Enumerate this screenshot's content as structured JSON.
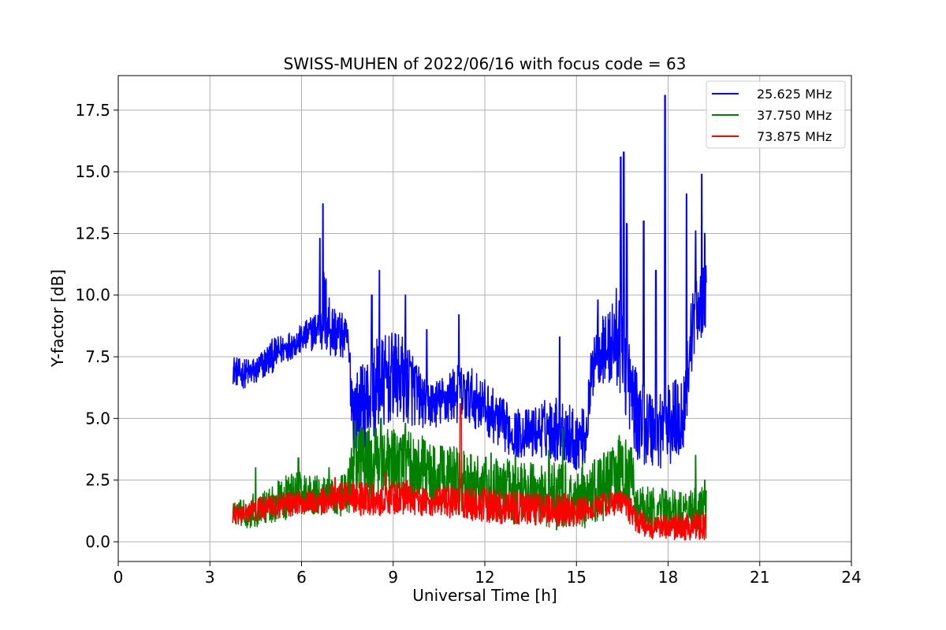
{
  "chart_data": {
    "type": "line",
    "title": "SWISS-MUHEN of 2022/06/16 with focus code = 63",
    "xlabel": "Universal Time [h]",
    "ylabel": "Y-factor [dB]",
    "xlim": [
      0,
      24
    ],
    "ylim": [
      -0.8,
      18.9
    ],
    "x_ticks": [
      0,
      3,
      6,
      9,
      12,
      15,
      18,
      21,
      24
    ],
    "x_tick_labels": [
      "0",
      "3",
      "6",
      "9",
      "12",
      "15",
      "18",
      "21",
      "24"
    ],
    "y_ticks": [
      0.0,
      2.5,
      5.0,
      7.5,
      10.0,
      12.5,
      15.0,
      17.5
    ],
    "y_tick_labels": [
      "0.0",
      "2.5",
      "5.0",
      "7.5",
      "10.0",
      "12.5",
      "15.0",
      "17.5"
    ],
    "grid": true,
    "legend_position": "top-right",
    "series": [
      {
        "name": "25.625 MHz",
        "color": "#0000ff",
        "x": [
          3.75,
          4.0,
          4.5,
          5.0,
          5.5,
          6.0,
          6.5,
          6.7,
          7.0,
          7.5,
          7.7,
          8.0,
          8.5,
          9.0,
          9.5,
          10.0,
          10.5,
          11.0,
          11.5,
          12.0,
          12.5,
          13.0,
          13.5,
          14.0,
          14.5,
          15.0,
          15.3,
          15.6,
          16.0,
          16.4,
          16.6,
          17.0,
          17.5,
          18.0,
          18.5,
          18.8,
          19.0,
          19.25
        ],
        "y": [
          7.0,
          6.8,
          6.9,
          7.5,
          7.9,
          8.2,
          8.6,
          9.5,
          8.6,
          8.2,
          5.2,
          5.5,
          6.3,
          6.7,
          6.5,
          5.6,
          5.6,
          6.0,
          5.9,
          5.5,
          4.8,
          4.4,
          4.4,
          4.6,
          4.6,
          4.1,
          4.3,
          7.8,
          7.8,
          8.4,
          7.0,
          5.0,
          4.6,
          4.7,
          5.2,
          8.8,
          9.6,
          9.8
        ],
        "amp": [
          0.6,
          0.6,
          0.6,
          0.7,
          0.6,
          0.6,
          0.8,
          2.0,
          1.2,
          0.8,
          1.6,
          1.8,
          2.0,
          1.8,
          1.8,
          1.0,
          1.0,
          1.2,
          1.2,
          1.1,
          1.1,
          1.0,
          1.0,
          1.2,
          1.4,
          1.2,
          1.2,
          1.4,
          1.4,
          2.4,
          2.0,
          1.7,
          1.7,
          1.7,
          1.7,
          1.6,
          1.4,
          1.4
        ],
        "spikes": [
          [
            6.7,
            13.7
          ],
          [
            6.6,
            12.3
          ],
          [
            8.55,
            11.0
          ],
          [
            8.3,
            10.0
          ],
          [
            9.4,
            10.0
          ],
          [
            10.1,
            8.6
          ],
          [
            11.15,
            9.2
          ],
          [
            14.45,
            8.3
          ],
          [
            15.7,
            9.8
          ],
          [
            16.45,
            15.6
          ],
          [
            16.55,
            15.8
          ],
          [
            16.65,
            12.9
          ],
          [
            17.2,
            13.0
          ],
          [
            17.6,
            11.0
          ],
          [
            17.9,
            18.1
          ],
          [
            18.6,
            14.1
          ],
          [
            18.9,
            12.6
          ],
          [
            19.1,
            14.9
          ],
          [
            19.2,
            12.5
          ]
        ]
      },
      {
        "name": "37.750 MHz",
        "color": "#008000",
        "x": [
          3.75,
          4.0,
          4.5,
          5.0,
          5.5,
          6.0,
          6.5,
          7.0,
          7.5,
          7.7,
          8.0,
          8.5,
          9.0,
          9.5,
          10.0,
          10.5,
          11.0,
          11.5,
          12.0,
          12.5,
          13.0,
          13.5,
          14.0,
          14.5,
          15.0,
          15.5,
          16.0,
          16.5,
          16.8,
          17.0,
          17.5,
          18.0,
          18.5,
          19.0,
          19.25
        ],
        "y": [
          1.2,
          1.1,
          1.3,
          1.5,
          1.8,
          2.0,
          1.9,
          1.8,
          1.9,
          3.0,
          3.2,
          3.0,
          3.0,
          3.1,
          2.8,
          2.6,
          2.5,
          2.3,
          2.2,
          2.1,
          2.0,
          2.0,
          1.9,
          1.8,
          1.8,
          2.0,
          2.3,
          2.8,
          2.6,
          1.4,
          1.3,
          1.3,
          1.2,
          1.3,
          1.3
        ],
        "amp": [
          0.5,
          0.6,
          0.7,
          0.8,
          0.9,
          0.9,
          0.8,
          0.8,
          0.9,
          1.4,
          1.6,
          1.6,
          1.6,
          1.6,
          1.5,
          1.4,
          1.4,
          1.3,
          1.3,
          1.3,
          1.3,
          1.3,
          1.3,
          1.4,
          1.5,
          1.3,
          1.4,
          1.5,
          1.3,
          0.9,
          0.9,
          0.9,
          0.9,
          0.9,
          0.9
        ],
        "spikes": [
          [
            4.5,
            3.0
          ],
          [
            5.9,
            3.4
          ],
          [
            6.9,
            3.0
          ],
          [
            7.75,
            4.9
          ],
          [
            8.6,
            5.0
          ],
          [
            9.4,
            4.8
          ],
          [
            11.1,
            3.6
          ],
          [
            12.2,
            3.6
          ],
          [
            13.0,
            3.5
          ],
          [
            14.1,
            3.7
          ],
          [
            14.55,
            4.6
          ],
          [
            15.9,
            3.6
          ],
          [
            16.4,
            4.3
          ],
          [
            18.9,
            3.5
          ],
          [
            19.2,
            2.5
          ]
        ]
      },
      {
        "name": "73.875 MHz",
        "color": "#ff0000",
        "x": [
          3.75,
          4.0,
          4.5,
          5.0,
          5.5,
          6.0,
          6.5,
          7.0,
          7.5,
          8.0,
          8.5,
          9.0,
          9.5,
          10.0,
          10.5,
          11.0,
          11.5,
          12.0,
          12.5,
          13.0,
          13.5,
          14.0,
          14.5,
          15.0,
          15.5,
          16.0,
          16.5,
          16.8,
          17.0,
          17.5,
          18.0,
          18.5,
          19.0,
          19.25
        ],
        "y": [
          1.1,
          1.1,
          1.3,
          1.4,
          1.5,
          1.6,
          1.6,
          1.8,
          1.9,
          1.7,
          1.7,
          1.8,
          1.8,
          1.6,
          1.6,
          1.6,
          1.5,
          1.5,
          1.4,
          1.4,
          1.3,
          1.3,
          1.3,
          1.2,
          1.4,
          1.5,
          1.6,
          1.2,
          0.8,
          0.6,
          0.6,
          0.6,
          0.7,
          0.6
        ],
        "amp": [
          0.5,
          0.4,
          0.5,
          0.5,
          0.5,
          0.5,
          0.5,
          0.6,
          0.6,
          0.7,
          0.7,
          0.7,
          0.7,
          0.6,
          0.6,
          0.7,
          0.7,
          0.7,
          0.7,
          0.7,
          0.7,
          0.7,
          0.7,
          0.6,
          0.5,
          0.5,
          0.5,
          0.6,
          0.5,
          0.5,
          0.5,
          0.6,
          0.6,
          0.6
        ],
        "spikes": [
          [
            7.1,
            2.6
          ],
          [
            8.75,
            2.8
          ],
          [
            11.2,
            5.6
          ],
          [
            11.23,
            5.0
          ]
        ]
      }
    ]
  }
}
